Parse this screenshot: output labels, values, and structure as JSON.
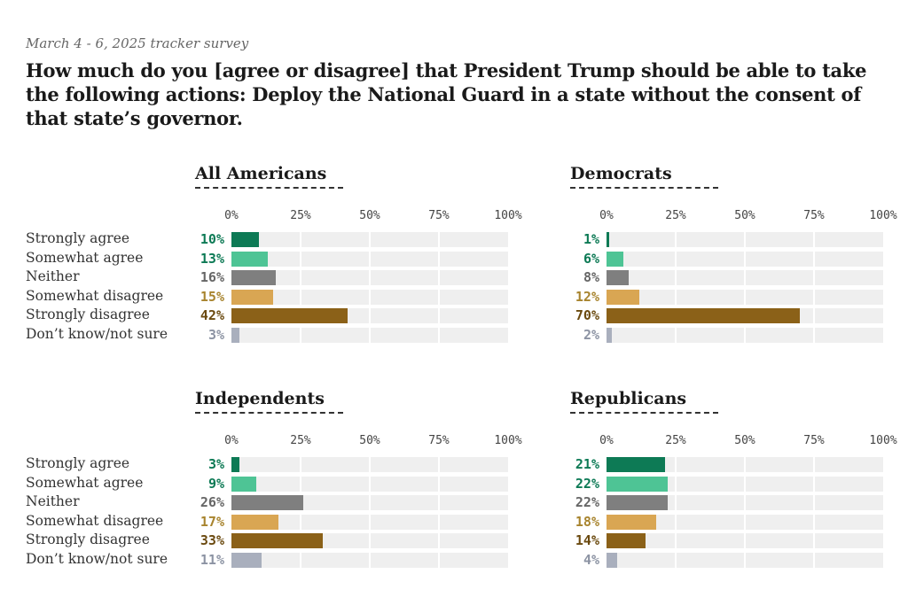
{
  "header": {
    "subtitle": "March 4 - 6, 2025 tracker survey",
    "title": "How much do you [agree or disagree] that President Trump should be able to take the following actions: Deploy the National Guard in a state without the consent of that state’s governor."
  },
  "colors": {
    "strongly_agree": "#0d7a55",
    "somewhat_agree": "#4ec495",
    "neither": "#7f7f7f",
    "somewhat_disagree": "#d9a653",
    "strongly_disagree": "#8b6118",
    "dont_know": "#a9afbd",
    "track": "#efefef"
  },
  "chart_data": [
    {
      "type": "bar",
      "title": "All Americans",
      "categories": [
        "Strongly agree",
        "Somewhat agree",
        "Neither",
        "Somewhat disagree",
        "Strongly disagree",
        "Don’t know/not sure"
      ],
      "values": [
        10,
        13,
        16,
        15,
        42,
        3
      ],
      "value_labels": [
        "10%",
        "13%",
        "16%",
        "15%",
        "42%",
        "3%"
      ],
      "xlim": [
        0,
        100
      ],
      "ticks": [
        "0%",
        "25%",
        "50%",
        "75%",
        "100%"
      ],
      "show_row_labels": true
    },
    {
      "type": "bar",
      "title": "Democrats",
      "categories": [
        "Strongly agree",
        "Somewhat agree",
        "Neither",
        "Somewhat disagree",
        "Strongly disagree",
        "Don’t know/not sure"
      ],
      "values": [
        1,
        6,
        8,
        12,
        70,
        2
      ],
      "value_labels": [
        "1%",
        "6%",
        "8%",
        "12%",
        "70%",
        "2%"
      ],
      "xlim": [
        0,
        100
      ],
      "ticks": [
        "0%",
        "25%",
        "50%",
        "75%",
        "100%"
      ],
      "show_row_labels": false
    },
    {
      "type": "bar",
      "title": "Independents",
      "categories": [
        "Strongly agree",
        "Somewhat agree",
        "Neither",
        "Somewhat disagree",
        "Strongly disagree",
        "Don’t know/not sure"
      ],
      "values": [
        3,
        9,
        26,
        17,
        33,
        11
      ],
      "value_labels": [
        "3%",
        "9%",
        "26%",
        "17%",
        "33%",
        "11%"
      ],
      "xlim": [
        0,
        100
      ],
      "ticks": [
        "0%",
        "25%",
        "50%",
        "75%",
        "100%"
      ],
      "show_row_labels": true
    },
    {
      "type": "bar",
      "title": "Republicans",
      "categories": [
        "Strongly agree",
        "Somewhat agree",
        "Neither",
        "Somewhat disagree",
        "Strongly disagree",
        "Don’t know/not sure"
      ],
      "values": [
        21,
        22,
        22,
        18,
        14,
        4
      ],
      "value_labels": [
        "21%",
        "22%",
        "22%",
        "18%",
        "14%",
        "4%"
      ],
      "xlim": [
        0,
        100
      ],
      "ticks": [
        "0%",
        "25%",
        "50%",
        "75%",
        "100%"
      ],
      "show_row_labels": false
    }
  ]
}
